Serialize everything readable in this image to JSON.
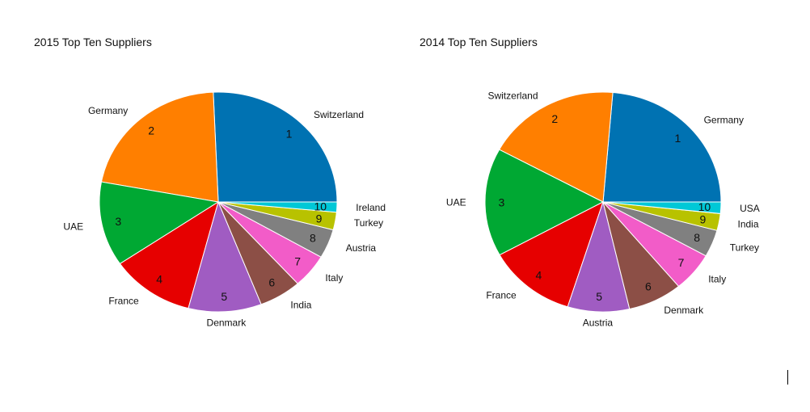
{
  "chart_data": [
    {
      "type": "pie",
      "title": "2015 Top Ten Suppliers",
      "labels": [
        "Switzerland",
        "Germany",
        "UAE",
        "France",
        "Denmark",
        "India",
        "Italy",
        "Austria",
        "Turkey",
        "Ireland"
      ],
      "rank_labels": [
        "1",
        "2",
        "3",
        "4",
        "5",
        "6",
        "7",
        "8",
        "9",
        "10"
      ],
      "values": [
        25.8,
        21.5,
        12.5,
        11.5,
        10.0,
        5.8,
        5.0,
        4.3,
        2.6,
        1.5
      ],
      "colors": [
        "#0072b2",
        "#ff7f00",
        "#00a833",
        "#e60000",
        "#a05cc2",
        "#8c4f46",
        "#f25cc8",
        "#808080",
        "#b8c200",
        "#00c8d7"
      ],
      "start_angle_deg": 0,
      "direction": "counterclockwise"
    },
    {
      "type": "pie",
      "title": "2014 Top Ten Suppliers",
      "labels": [
        "Germany",
        "Switzerland",
        "UAE",
        "France",
        "Austria",
        "Denmark",
        "Italy",
        "Turkey",
        "India",
        "USA"
      ],
      "rank_labels": [
        "1",
        "2",
        "3",
        "4",
        "5",
        "6",
        "7",
        "8",
        "9",
        "10"
      ],
      "values": [
        23.8,
        18.5,
        16.0,
        12.2,
        8.5,
        7.5,
        5.8,
        4.0,
        2.5,
        1.7
      ],
      "colors": [
        "#0072b2",
        "#ff7f00",
        "#00a833",
        "#e60000",
        "#a05cc2",
        "#8c4f46",
        "#f25cc8",
        "#808080",
        "#b8c200",
        "#00c8d7"
      ],
      "start_angle_deg": 0,
      "direction": "counterclockwise"
    }
  ]
}
